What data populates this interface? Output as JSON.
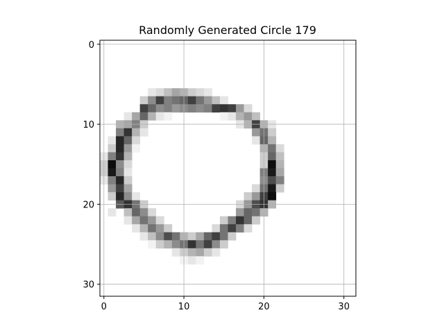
{
  "chart_data": {
    "type": "heatmap",
    "title": "Randomly Generated Circle 179",
    "xlabel": "",
    "ylabel": "",
    "grid_size": [
      32,
      32
    ],
    "xlim": [
      -0.5,
      31.5
    ],
    "ylim": [
      31.5,
      -0.5
    ],
    "y_inverted": true,
    "x_ticks": [
      0,
      10,
      20,
      30
    ],
    "y_ticks": [
      0,
      10,
      20,
      30
    ],
    "grid": true,
    "colormap": "gray_r",
    "value_range": [
      0,
      1
    ],
    "pixels": [
      [
        6,
        6,
        0.1
      ],
      [
        6,
        7,
        0.15
      ],
      [
        6,
        8,
        0.25
      ],
      [
        6,
        9,
        0.35
      ],
      [
        6,
        10,
        0.3
      ],
      [
        6,
        11,
        0.2
      ],
      [
        6,
        12,
        0.15
      ],
      [
        6,
        13,
        0.1
      ],
      [
        7,
        5,
        0.2
      ],
      [
        7,
        6,
        0.45
      ],
      [
        7,
        7,
        0.75
      ],
      [
        7,
        8,
        0.5
      ],
      [
        7,
        9,
        0.55
      ],
      [
        7,
        10,
        0.6
      ],
      [
        7,
        11,
        0.75
      ],
      [
        7,
        12,
        0.55
      ],
      [
        7,
        13,
        0.4
      ],
      [
        7,
        14,
        0.25
      ],
      [
        7,
        15,
        0.1
      ],
      [
        8,
        5,
        0.75
      ],
      [
        8,
        6,
        0.6
      ],
      [
        8,
        7,
        0.45
      ],
      [
        8,
        8,
        0.5
      ],
      [
        8,
        9,
        0.4
      ],
      [
        8,
        10,
        0.45
      ],
      [
        8,
        11,
        0.5
      ],
      [
        8,
        12,
        0.45
      ],
      [
        8,
        13,
        0.5
      ],
      [
        8,
        14,
        0.75
      ],
      [
        8,
        15,
        0.8
      ],
      [
        8,
        16,
        0.75
      ],
      [
        8,
        17,
        0.4
      ],
      [
        8,
        18,
        0.15
      ],
      [
        9,
        3,
        0.1
      ],
      [
        9,
        4,
        0.35
      ],
      [
        9,
        5,
        0.6
      ],
      [
        9,
        6,
        0.3
      ],
      [
        9,
        7,
        0.1
      ],
      [
        9,
        8,
        0.05
      ],
      [
        9,
        15,
        0.05
      ],
      [
        9,
        16,
        0.1
      ],
      [
        9,
        17,
        0.3
      ],
      [
        9,
        18,
        0.4
      ],
      [
        9,
        19,
        0.25
      ],
      [
        10,
        2,
        0.3
      ],
      [
        10,
        3,
        0.35
      ],
      [
        10,
        4,
        0.5
      ],
      [
        10,
        5,
        0.2
      ],
      [
        10,
        17,
        0.1
      ],
      [
        10,
        18,
        0.3
      ],
      [
        10,
        19,
        0.75
      ],
      [
        10,
        20,
        0.3
      ],
      [
        10,
        21,
        0.1
      ],
      [
        11,
        2,
        0.5
      ],
      [
        11,
        3,
        0.8
      ],
      [
        11,
        4,
        0.3
      ],
      [
        11,
        5,
        0.1
      ],
      [
        11,
        19,
        0.4
      ],
      [
        11,
        20,
        0.55
      ],
      [
        11,
        21,
        0.2
      ],
      [
        12,
        1,
        0.1
      ],
      [
        12,
        2,
        0.85
      ],
      [
        12,
        3,
        0.6
      ],
      [
        12,
        4,
        0.15
      ],
      [
        12,
        19,
        0.1
      ],
      [
        12,
        20,
        0.6
      ],
      [
        12,
        21,
        0.3
      ],
      [
        13,
        1,
        0.2
      ],
      [
        13,
        2,
        0.85
      ],
      [
        13,
        3,
        0.4
      ],
      [
        13,
        4,
        0.05
      ],
      [
        13,
        20,
        0.3
      ],
      [
        13,
        21,
        0.55
      ],
      [
        13,
        22,
        0.15
      ],
      [
        14,
        0,
        0.1
      ],
      [
        14,
        1,
        0.5
      ],
      [
        14,
        2,
        0.8
      ],
      [
        14,
        3,
        0.3
      ],
      [
        14,
        20,
        0.2
      ],
      [
        14,
        21,
        0.6
      ],
      [
        14,
        22,
        0.25
      ],
      [
        15,
        0,
        0.2
      ],
      [
        15,
        1,
        0.95
      ],
      [
        15,
        2,
        0.45
      ],
      [
        15,
        3,
        0.15
      ],
      [
        15,
        20,
        0.2
      ],
      [
        15,
        21,
        0.95
      ],
      [
        15,
        22,
        0.3
      ],
      [
        16,
        0,
        0.2
      ],
      [
        16,
        1,
        0.9
      ],
      [
        16,
        2,
        0.5
      ],
      [
        16,
        3,
        0.1
      ],
      [
        16,
        20,
        0.5
      ],
      [
        16,
        21,
        0.9
      ],
      [
        16,
        22,
        0.35
      ],
      [
        17,
        0,
        0.1
      ],
      [
        17,
        1,
        0.5
      ],
      [
        17,
        2,
        0.85
      ],
      [
        17,
        3,
        0.2
      ],
      [
        17,
        20,
        0.45
      ],
      [
        17,
        21,
        0.7
      ],
      [
        17,
        22,
        0.5
      ],
      [
        18,
        1,
        0.4
      ],
      [
        18,
        2,
        0.75
      ],
      [
        18,
        3,
        0.35
      ],
      [
        18,
        19,
        0.15
      ],
      [
        18,
        20,
        0.55
      ],
      [
        18,
        21,
        0.9
      ],
      [
        18,
        22,
        0.2
      ],
      [
        19,
        1,
        0.2
      ],
      [
        19,
        2,
        0.85
      ],
      [
        19,
        3,
        0.45
      ],
      [
        19,
        4,
        0.1
      ],
      [
        19,
        18,
        0.2
      ],
      [
        19,
        19,
        0.4
      ],
      [
        19,
        20,
        0.75
      ],
      [
        19,
        21,
        0.95
      ],
      [
        20,
        2,
        0.65
      ],
      [
        20,
        3,
        0.8
      ],
      [
        20,
        4,
        0.55
      ],
      [
        20,
        5,
        0.2
      ],
      [
        20,
        17,
        0.15
      ],
      [
        20,
        18,
        0.4
      ],
      [
        20,
        19,
        0.7
      ],
      [
        20,
        20,
        0.8
      ],
      [
        20,
        21,
        0.3
      ],
      [
        21,
        1,
        0.1
      ],
      [
        21,
        3,
        0.25
      ],
      [
        21,
        4,
        0.6
      ],
      [
        21,
        5,
        0.45
      ],
      [
        21,
        6,
        0.15
      ],
      [
        21,
        17,
        0.4
      ],
      [
        21,
        18,
        0.6
      ],
      [
        21,
        19,
        0.55
      ],
      [
        21,
        20,
        0.3
      ],
      [
        22,
        3,
        0.1
      ],
      [
        22,
        4,
        0.35
      ],
      [
        22,
        5,
        0.55
      ],
      [
        22,
        6,
        0.4
      ],
      [
        22,
        7,
        0.15
      ],
      [
        22,
        15,
        0.2
      ],
      [
        22,
        16,
        0.5
      ],
      [
        22,
        17,
        0.8
      ],
      [
        22,
        18,
        0.6
      ],
      [
        22,
        19,
        0.2
      ],
      [
        23,
        4,
        0.1
      ],
      [
        23,
        5,
        0.3
      ],
      [
        23,
        6,
        0.55
      ],
      [
        23,
        7,
        0.4
      ],
      [
        23,
        8,
        0.2
      ],
      [
        23,
        14,
        0.15
      ],
      [
        23,
        15,
        0.55
      ],
      [
        23,
        16,
        0.75
      ],
      [
        23,
        17,
        0.5
      ],
      [
        23,
        18,
        0.15
      ],
      [
        24,
        5,
        0.1
      ],
      [
        24,
        6,
        0.25
      ],
      [
        24,
        7,
        0.45
      ],
      [
        24,
        8,
        0.7
      ],
      [
        24,
        9,
        0.55
      ],
      [
        24,
        10,
        0.3
      ],
      [
        24,
        11,
        0.2
      ],
      [
        24,
        12,
        0.35
      ],
      [
        24,
        13,
        0.6
      ],
      [
        24,
        14,
        0.75
      ],
      [
        24,
        15,
        0.55
      ],
      [
        24,
        16,
        0.2
      ],
      [
        25,
        6,
        0.05
      ],
      [
        25,
        7,
        0.2
      ],
      [
        25,
        8,
        0.3
      ],
      [
        25,
        9,
        0.45
      ],
      [
        25,
        10,
        0.55
      ],
      [
        25,
        11,
        0.8
      ],
      [
        25,
        12,
        0.55
      ],
      [
        25,
        13,
        0.75
      ],
      [
        25,
        14,
        0.45
      ],
      [
        25,
        15,
        0.2
      ],
      [
        26,
        9,
        0.1
      ],
      [
        26,
        10,
        0.2
      ],
      [
        26,
        11,
        0.3
      ],
      [
        26,
        12,
        0.35
      ],
      [
        26,
        13,
        0.2
      ],
      [
        26,
        14,
        0.1
      ],
      [
        27,
        10,
        0.05
      ],
      [
        27,
        11,
        0.1
      ],
      [
        27,
        12,
        0.05
      ]
    ]
  }
}
